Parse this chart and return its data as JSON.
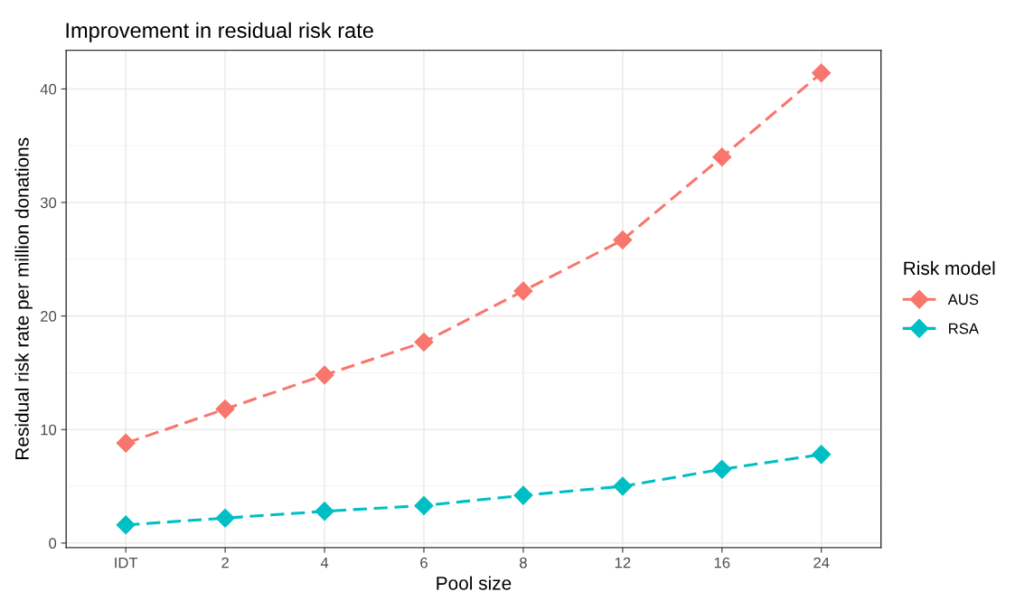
{
  "chart_data": {
    "type": "line",
    "title": "Improvement in residual risk rate",
    "xlabel": "Pool size",
    "ylabel": "Residual risk rate per million donations",
    "legend_title": "Risk model",
    "categories": [
      "IDT",
      "2",
      "4",
      "6",
      "8",
      "12",
      "16",
      "24"
    ],
    "series": [
      {
        "name": "AUS",
        "color": "#f8766d",
        "values": [
          8.8,
          11.8,
          14.8,
          17.7,
          22.2,
          26.7,
          34.0,
          41.4
        ]
      },
      {
        "name": "RSA",
        "color": "#00bfc4",
        "values": [
          1.6,
          2.2,
          2.8,
          3.3,
          4.2,
          5.0,
          6.5,
          7.8
        ]
      }
    ],
    "ylim": [
      -0.4,
      43.4
    ],
    "yticks": [
      0,
      10,
      20,
      30,
      40
    ],
    "grid": true,
    "legend": "right",
    "marker": "diamond",
    "line_style": "dashed"
  }
}
